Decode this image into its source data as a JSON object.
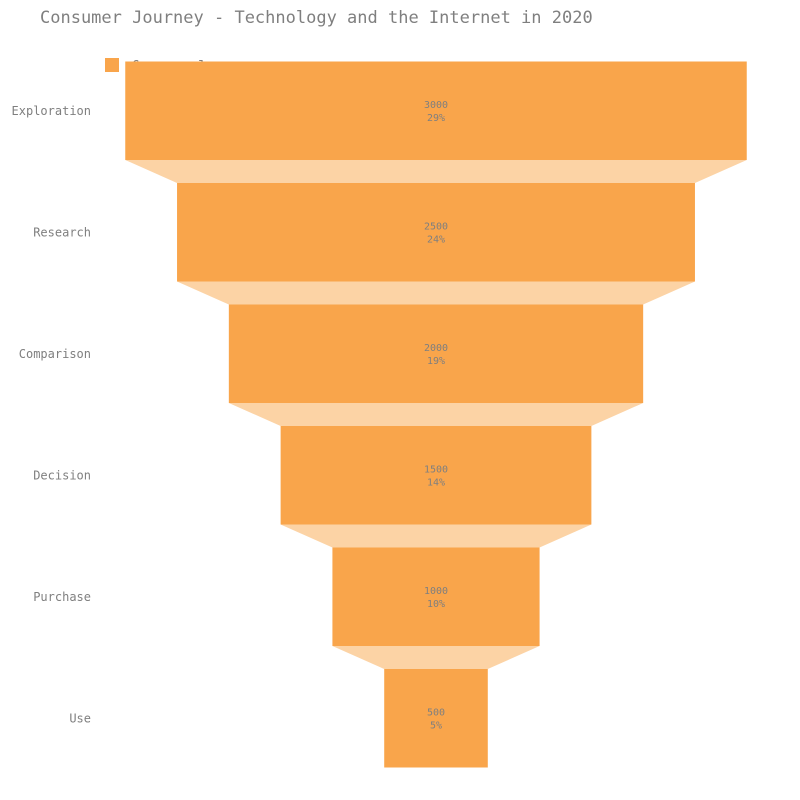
{
  "title": "Consumer Journey - Technology and the Internet in 2020",
  "legend": {
    "label": "Consumer Journey"
  },
  "colors": {
    "stage": "#f9a54b",
    "connector": "#fcd3a5",
    "text": "#7f7f7f"
  },
  "chart_data": {
    "type": "funnel",
    "title": "Consumer Journey - Technology and the Internet in 2020",
    "series": [
      {
        "name": "Consumer Journey",
        "categories": [
          "Exploration",
          "Research",
          "Comparison",
          "Decision",
          "Purchase",
          "Use"
        ],
        "values": [
          3000,
          2500,
          2000,
          1500,
          1000,
          500
        ],
        "percent_labels": [
          "29%",
          "24%",
          "19%",
          "14%",
          "10%",
          "5%"
        ]
      }
    ],
    "legend_position": "top-left",
    "grid": false
  }
}
